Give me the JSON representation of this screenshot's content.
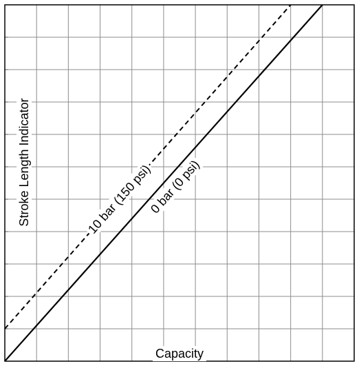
{
  "chart_data": {
    "type": "line",
    "title": "",
    "xlabel": "Capacity",
    "ylabel": "Stroke  Length  Indicator",
    "grid": true,
    "xlim": [
      0,
      11
    ],
    "ylim": [
      0,
      11
    ],
    "series": [
      {
        "name": "10 bar (150 psi)",
        "style": "dashed",
        "color": "#000000",
        "x": [
          0,
          9
        ],
        "y": [
          1,
          11
        ]
      },
      {
        "name": "0 bar (0 psi)",
        "style": "solid",
        "color": "#000000",
        "x": [
          0,
          10
        ],
        "y": [
          0,
          11
        ]
      }
    ]
  }
}
